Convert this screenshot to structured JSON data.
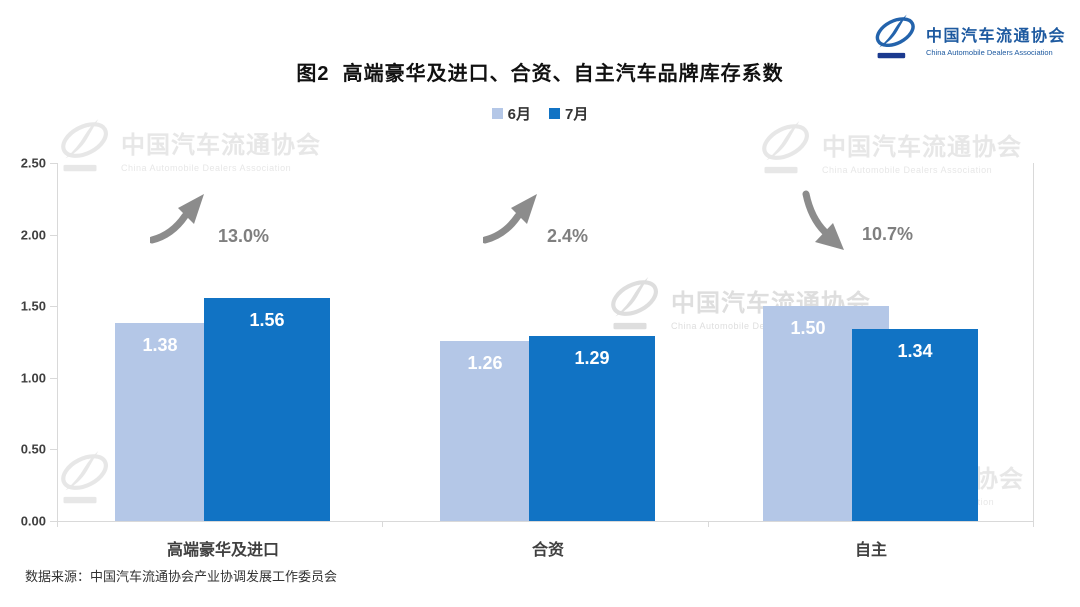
{
  "logo": {
    "zh": "中国汽车流通协会",
    "en": "China Automobile Dealers Association"
  },
  "watermark": {
    "zh": "中国汽车流通协会",
    "en": "China Automobile Dealers Association"
  },
  "title": "图2  高端豪华及进口、合资、自主汽车品牌库存系数",
  "source": "数据来源：中国汽车流通协会产业协调发展工作委员会",
  "chart_data": {
    "type": "bar",
    "title": "图2 高端豪华及进口、合资、自主汽车品牌库存系数",
    "categories": [
      "高端豪华及进口",
      "合资",
      "自主"
    ],
    "series": [
      {
        "name": "6月",
        "color": "#B4C7E7",
        "values": [
          1.38,
          1.26,
          1.5
        ]
      },
      {
        "name": "7月",
        "color": "#1173C4",
        "values": [
          1.56,
          1.29,
          1.34
        ]
      }
    ],
    "changes": [
      {
        "value": "13.0%",
        "direction": "up"
      },
      {
        "value": "2.4%",
        "direction": "up"
      },
      {
        "value": "10.7%",
        "direction": "down"
      }
    ],
    "xlabel": "",
    "ylabel": "",
    "ylim": [
      0,
      2.5
    ],
    "yticks": [
      "0.00",
      "0.50",
      "1.00",
      "1.50",
      "2.00",
      "2.50"
    ],
    "grid": false,
    "legend_position": "top-center",
    "value_labels": true,
    "colors": {
      "arrow": "#8C8C8C",
      "percent_text": "#7F7F7F",
      "axis_line": "#D9D9D9",
      "bar_value_text": "#FFFFFF"
    }
  }
}
